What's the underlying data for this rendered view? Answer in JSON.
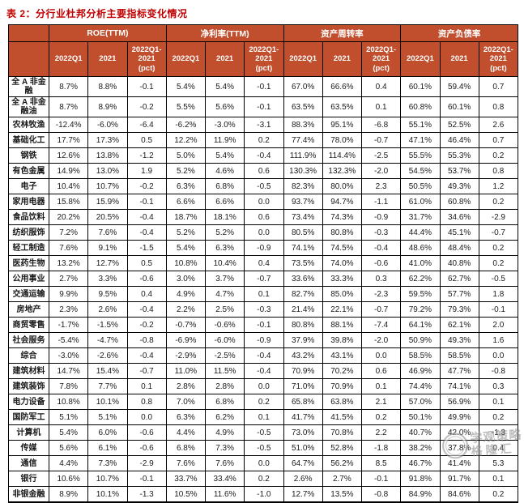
{
  "title": "表 2：分行业杜邦分析主要指标变化情况",
  "colors": {
    "header_bg": "#C14E2D",
    "header_text": "#FFFFFF",
    "title_text": "#C00000",
    "border": "#000000",
    "body_text": "#1A1A1A",
    "watermark": "#8A8A8A"
  },
  "table": {
    "groups": [
      {
        "label": "ROE(TTM)"
      },
      {
        "label": "净利率(TTM)"
      },
      {
        "label": "资产周转率"
      },
      {
        "label": "资产负债率"
      }
    ],
    "sub_headers": [
      "2022Q1",
      "2021",
      "2022Q1-\n2021\n(pct)"
    ],
    "rows": [
      {
        "label": "全 A 非金融",
        "values": [
          "8.7%",
          "8.8%",
          "-0.1",
          "5.4%",
          "5.4%",
          "-0.1",
          "67.0%",
          "66.6%",
          "0.4",
          "60.1%",
          "59.4%",
          "0.7"
        ]
      },
      {
        "label": "全 A 非金融油",
        "values": [
          "8.7%",
          "8.9%",
          "-0.2",
          "5.5%",
          "5.6%",
          "-0.1",
          "63.5%",
          "63.5%",
          "0.1",
          "60.8%",
          "60.1%",
          "0.8"
        ]
      },
      {
        "label": "农林牧渔",
        "values": [
          "-12.4%",
          "-6.0%",
          "-6.4",
          "-6.2%",
          "-3.0%",
          "-3.1",
          "88.3%",
          "95.1%",
          "-6.8",
          "55.1%",
          "52.5%",
          "2.6"
        ]
      },
      {
        "label": "基础化工",
        "values": [
          "17.7%",
          "17.3%",
          "0.5",
          "12.2%",
          "11.9%",
          "0.2",
          "77.4%",
          "78.0%",
          "-0.7",
          "47.1%",
          "46.4%",
          "0.7"
        ]
      },
      {
        "label": "钢铁",
        "values": [
          "12.6%",
          "13.8%",
          "-1.2",
          "5.0%",
          "5.4%",
          "-0.4",
          "111.9%",
          "114.4%",
          "-2.5",
          "55.5%",
          "55.3%",
          "0.2"
        ]
      },
      {
        "label": "有色金属",
        "values": [
          "14.9%",
          "13.0%",
          "1.9",
          "5.2%",
          "4.6%",
          "0.6",
          "130.3%",
          "132.3%",
          "-2.0",
          "54.5%",
          "53.7%",
          "0.8"
        ]
      },
      {
        "label": "电子",
        "values": [
          "10.4%",
          "10.7%",
          "-0.2",
          "6.3%",
          "6.8%",
          "-0.5",
          "82.3%",
          "80.0%",
          "2.3",
          "50.5%",
          "49.3%",
          "1.2"
        ]
      },
      {
        "label": "家用电器",
        "values": [
          "15.8%",
          "15.9%",
          "-0.1",
          "6.6%",
          "6.6%",
          "0.0",
          "93.7%",
          "94.7%",
          "-1.1",
          "61.0%",
          "60.8%",
          "0.2"
        ]
      },
      {
        "label": "食品饮料",
        "values": [
          "20.2%",
          "20.5%",
          "-0.4",
          "18.7%",
          "18.1%",
          "0.6",
          "73.4%",
          "74.3%",
          "-0.9",
          "31.7%",
          "34.6%",
          "-2.9"
        ]
      },
      {
        "label": "纺织服饰",
        "values": [
          "7.2%",
          "7.6%",
          "-0.4",
          "5.2%",
          "5.2%",
          "0.0",
          "80.5%",
          "80.8%",
          "-0.3",
          "44.4%",
          "45.1%",
          "-0.7"
        ]
      },
      {
        "label": "轻工制造",
        "values": [
          "7.6%",
          "9.1%",
          "-1.5",
          "5.4%",
          "6.3%",
          "-0.9",
          "74.1%",
          "74.5%",
          "-0.4",
          "48.6%",
          "48.4%",
          "0.2"
        ]
      },
      {
        "label": "医药生物",
        "values": [
          "13.2%",
          "12.7%",
          "0.5",
          "10.8%",
          "10.4%",
          "0.4",
          "73.5%",
          "74.0%",
          "-0.6",
          "41.0%",
          "40.8%",
          "0.2"
        ]
      },
      {
        "label": "公用事业",
        "values": [
          "2.7%",
          "3.3%",
          "-0.6",
          "3.0%",
          "3.7%",
          "-0.7",
          "33.6%",
          "33.3%",
          "0.3",
          "62.2%",
          "62.7%",
          "-0.5"
        ]
      },
      {
        "label": "交通运输",
        "values": [
          "9.9%",
          "9.5%",
          "0.4",
          "4.9%",
          "4.7%",
          "0.1",
          "82.7%",
          "85.0%",
          "-2.3",
          "59.5%",
          "57.7%",
          "1.8"
        ]
      },
      {
        "label": "房地产",
        "values": [
          "2.3%",
          "2.6%",
          "-0.4",
          "2.2%",
          "2.5%",
          "-0.3",
          "21.4%",
          "22.1%",
          "-0.7",
          "79.2%",
          "79.3%",
          "-0.1"
        ]
      },
      {
        "label": "商贸零售",
        "values": [
          "-1.7%",
          "-1.5%",
          "-0.2",
          "-0.7%",
          "-0.6%",
          "-0.1",
          "80.8%",
          "88.1%",
          "-7.4",
          "64.1%",
          "62.1%",
          "2.0"
        ]
      },
      {
        "label": "社会服务",
        "values": [
          "-5.4%",
          "-4.7%",
          "-0.8",
          "-6.9%",
          "-6.0%",
          "-0.9",
          "37.9%",
          "39.8%",
          "-2.0",
          "50.9%",
          "49.3%",
          "1.6"
        ]
      },
      {
        "label": "综合",
        "values": [
          "-3.0%",
          "-2.6%",
          "-0.4",
          "-2.9%",
          "-2.5%",
          "-0.4",
          "43.2%",
          "43.1%",
          "0.0",
          "58.5%",
          "58.5%",
          "0.0"
        ]
      },
      {
        "label": "建筑材料",
        "values": [
          "14.7%",
          "15.4%",
          "-0.7",
          "11.0%",
          "11.5%",
          "-0.4",
          "70.9%",
          "70.2%",
          "0.6",
          "46.9%",
          "47.7%",
          "-0.8"
        ]
      },
      {
        "label": "建筑装饰",
        "values": [
          "7.8%",
          "7.7%",
          "0.1",
          "2.8%",
          "2.8%",
          "0.0",
          "71.0%",
          "70.9%",
          "0.1",
          "74.4%",
          "74.1%",
          "0.3"
        ]
      },
      {
        "label": "电力设备",
        "values": [
          "10.8%",
          "10.1%",
          "0.8",
          "7.0%",
          "6.8%",
          "0.2",
          "65.8%",
          "63.8%",
          "2.1",
          "57.0%",
          "56.9%",
          "0.1"
        ]
      },
      {
        "label": "国防军工",
        "values": [
          "5.1%",
          "5.1%",
          "0.0",
          "6.3%",
          "6.2%",
          "0.1",
          "41.7%",
          "41.5%",
          "0.2",
          "50.1%",
          "49.9%",
          "0.2"
        ]
      },
      {
        "label": "计算机",
        "values": [
          "5.4%",
          "6.0%",
          "-0.6",
          "4.4%",
          "4.9%",
          "-0.5",
          "73.0%",
          "70.8%",
          "2.2",
          "40.7%",
          "42.0%",
          "-1.3"
        ]
      },
      {
        "label": "传媒",
        "values": [
          "5.6%",
          "6.1%",
          "-0.6",
          "6.8%",
          "7.3%",
          "-0.5",
          "51.0%",
          "52.8%",
          "-1.8",
          "38.2%",
          "37.8%",
          "0.4"
        ]
      },
      {
        "label": "通信",
        "values": [
          "4.4%",
          "7.3%",
          "-2.9",
          "7.6%",
          "7.6%",
          "0.0",
          "64.7%",
          "56.2%",
          "8.5",
          "46.7%",
          "41.4%",
          "5.3"
        ]
      },
      {
        "label": "银行",
        "values": [
          "10.6%",
          "10.7%",
          "-0.1",
          "33.7%",
          "33.4%",
          "0.2",
          "2.6%",
          "2.7%",
          "-0.1",
          "91.8%",
          "91.7%",
          "0.1"
        ]
      },
      {
        "label": "非银金融",
        "values": [
          "8.9%",
          "10.1%",
          "-1.3",
          "10.5%",
          "11.6%",
          "-1.0",
          "12.7%",
          "13.5%",
          "-0.8",
          "84.9%",
          "84.6%",
          "0.2"
        ]
      }
    ]
  },
  "watermark": {
    "line1": "学观策略",
    "line2": "格隆汇"
  }
}
